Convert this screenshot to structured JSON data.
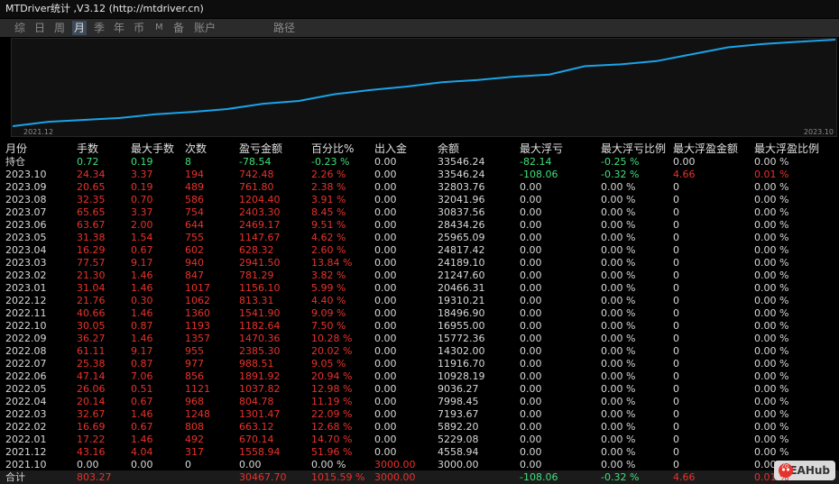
{
  "header": {
    "title": "MTDriver统计 ,V3.12 (http://mtdriver.cn)"
  },
  "tabs": [
    "综",
    "日",
    "周",
    "月",
    "季",
    "年",
    "币",
    "M",
    "备",
    "账户",
    "路径"
  ],
  "chart": {
    "x_labels": [
      "2021.12",
      "2023.10"
    ]
  },
  "table": {
    "columns": [
      "月份",
      "手数",
      "最大手数",
      "次数",
      "盈亏金额",
      "百分比%",
      "出入金",
      "余额",
      "最大浮亏",
      "最大浮亏比例",
      "最大浮盈金额",
      "最大浮盈比例"
    ],
    "rows": [
      [
        "持仓",
        "0.72",
        "0.19",
        "8",
        "-78.54",
        "-0.23 %",
        "0.00",
        "33546.24",
        "-82.14",
        "-0.25 %",
        "0.00",
        "0.00 %"
      ],
      [
        "2023.10",
        "24.34",
        "3.37",
        "194",
        "742.48",
        "2.26 %",
        "0.00",
        "33546.24",
        "-108.06",
        "-0.32 %",
        "4.66",
        "0.01 %"
      ],
      [
        "2023.09",
        "20.65",
        "0.19",
        "489",
        "761.80",
        "2.38 %",
        "0.00",
        "32803.76",
        "0.00",
        "0.00 %",
        "0",
        "0.00 %"
      ],
      [
        "2023.08",
        "32.35",
        "0.70",
        "586",
        "1204.40",
        "3.91 %",
        "0.00",
        "32041.96",
        "0.00",
        "0.00 %",
        "0",
        "0.00 %"
      ],
      [
        "2023.07",
        "65.65",
        "3.37",
        "754",
        "2403.30",
        "8.45 %",
        "0.00",
        "30837.56",
        "0.00",
        "0.00 %",
        "0",
        "0.00 %"
      ],
      [
        "2023.06",
        "63.67",
        "2.00",
        "644",
        "2469.17",
        "9.51 %",
        "0.00",
        "28434.26",
        "0.00",
        "0.00 %",
        "0",
        "0.00 %"
      ],
      [
        "2023.05",
        "31.38",
        "1.54",
        "755",
        "1147.67",
        "4.62 %",
        "0.00",
        "25965.09",
        "0.00",
        "0.00 %",
        "0",
        "0.00 %"
      ],
      [
        "2023.04",
        "16.29",
        "0.67",
        "602",
        "628.32",
        "2.60 %",
        "0.00",
        "24817.42",
        "0.00",
        "0.00 %",
        "0",
        "0.00 %"
      ],
      [
        "2023.03",
        "77.57",
        "9.17",
        "940",
        "2941.50",
        "13.84 %",
        "0.00",
        "24189.10",
        "0.00",
        "0.00 %",
        "0",
        "0.00 %"
      ],
      [
        "2023.02",
        "21.30",
        "1.46",
        "847",
        "781.29",
        "3.82 %",
        "0.00",
        "21247.60",
        "0.00",
        "0.00 %",
        "0",
        "0.00 %"
      ],
      [
        "2023.01",
        "31.04",
        "1.46",
        "1017",
        "1156.10",
        "5.99 %",
        "0.00",
        "20466.31",
        "0.00",
        "0.00 %",
        "0",
        "0.00 %"
      ],
      [
        "2022.12",
        "21.76",
        "0.30",
        "1062",
        "813.31",
        "4.40 %",
        "0.00",
        "19310.21",
        "0.00",
        "0.00 %",
        "0",
        "0.00 %"
      ],
      [
        "2022.11",
        "40.66",
        "1.46",
        "1360",
        "1541.90",
        "9.09 %",
        "0.00",
        "18496.90",
        "0.00",
        "0.00 %",
        "0",
        "0.00 %"
      ],
      [
        "2022.10",
        "30.05",
        "0.87",
        "1193",
        "1182.64",
        "7.50 %",
        "0.00",
        "16955.00",
        "0.00",
        "0.00 %",
        "0",
        "0.00 %"
      ],
      [
        "2022.09",
        "36.27",
        "1.46",
        "1357",
        "1470.36",
        "10.28 %",
        "0.00",
        "15772.36",
        "0.00",
        "0.00 %",
        "0",
        "0.00 %"
      ],
      [
        "2022.08",
        "61.11",
        "9.17",
        "955",
        "2385.30",
        "20.02 %",
        "0.00",
        "14302.00",
        "0.00",
        "0.00 %",
        "0",
        "0.00 %"
      ],
      [
        "2022.07",
        "25.38",
        "0.87",
        "977",
        "988.51",
        "9.05 %",
        "0.00",
        "11916.70",
        "0.00",
        "0.00 %",
        "0",
        "0.00 %"
      ],
      [
        "2022.06",
        "47.14",
        "7.06",
        "856",
        "1891.92",
        "20.94 %",
        "0.00",
        "10928.19",
        "0.00",
        "0.00 %",
        "0",
        "0.00 %"
      ],
      [
        "2022.05",
        "26.06",
        "0.51",
        "1121",
        "1037.82",
        "12.98 %",
        "0.00",
        "9036.27",
        "0.00",
        "0.00 %",
        "0",
        "0.00 %"
      ],
      [
        "2022.04",
        "20.14",
        "0.67",
        "968",
        "804.78",
        "11.19 %",
        "0.00",
        "7998.45",
        "0.00",
        "0.00 %",
        "0",
        "0.00 %"
      ],
      [
        "2022.03",
        "32.67",
        "1.46",
        "1248",
        "1301.47",
        "22.09 %",
        "0.00",
        "7193.67",
        "0.00",
        "0.00 %",
        "0",
        "0.00 %"
      ],
      [
        "2022.02",
        "16.69",
        "0.67",
        "808",
        "663.12",
        "12.68 %",
        "0.00",
        "5892.20",
        "0.00",
        "0.00 %",
        "0",
        "0.00 %"
      ],
      [
        "2022.01",
        "17.22",
        "1.46",
        "492",
        "670.14",
        "14.70 %",
        "0.00",
        "5229.08",
        "0.00",
        "0.00 %",
        "0",
        "0.00 %"
      ],
      [
        "2021.12",
        "43.16",
        "4.04",
        "317",
        "1558.94",
        "51.96 %",
        "0.00",
        "4558.94",
        "0.00",
        "0.00 %",
        "0",
        "0.00 %"
      ],
      [
        "2021.10",
        "0.00",
        "0.00",
        "0",
        "0.00",
        "0.00 %",
        "3000.00",
        "3000.00",
        "0.00",
        "0.00 %",
        "0",
        "0.00 %"
      ]
    ],
    "total": [
      "合计",
      "803.27",
      null,
      null,
      "30467.70",
      "1015.59 %",
      "3000.00",
      null,
      "-108.06",
      "-0.32 %",
      "4.66",
      "0.01 %"
    ]
  },
  "watermark": "EAHub"
}
